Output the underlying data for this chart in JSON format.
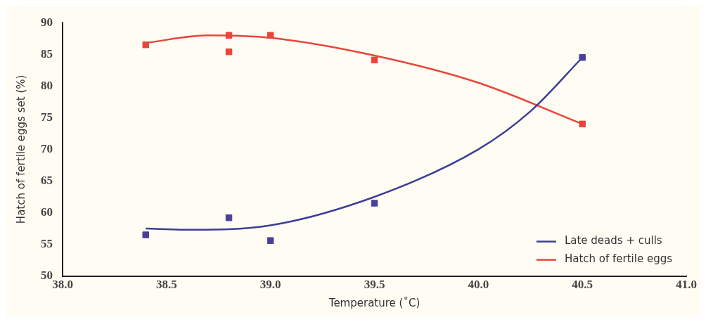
{
  "chart_data": {
    "type": "line",
    "xlabel": "Temperature (˚C)",
    "ylabel": "Hatch of fertile eggs set (%)",
    "xlim": [
      38.0,
      41.0
    ],
    "xticks": [
      {
        "value": 38.0,
        "label": "38.0"
      },
      {
        "value": 38.5,
        "label": "38.5"
      },
      {
        "value": 39.0,
        "label": "39.0"
      },
      {
        "value": 39.5,
        "label": "39.5"
      },
      {
        "value": 40.0,
        "label": "40.0"
      },
      {
        "value": 40.5,
        "label": "40.5"
      },
      {
        "value": 41.0,
        "label": "41.0"
      }
    ],
    "ylim": [
      50,
      90
    ],
    "yticks": [
      50,
      55,
      60,
      65,
      70,
      75,
      80,
      85,
      90
    ],
    "grid": false,
    "legend": "bottom right",
    "series": [
      {
        "type": "scatter",
        "color": "#e8453c",
        "x": [
          38.4,
          38.8,
          38.8,
          39.0,
          39.5,
          40.5
        ],
        "values": [
          86.5,
          88.0,
          85.4,
          88.0,
          84.1,
          74.0
        ]
      },
      {
        "type": "scatter",
        "color": "#4a3f9a",
        "x": [
          38.4,
          38.8,
          39.0,
          39.5,
          40.5
        ],
        "values": [
          56.5,
          59.2,
          55.6,
          61.5,
          84.5
        ]
      },
      {
        "name": "Late deads + culls",
        "color": "#3d3d99",
        "x": [
          38.4,
          38.6,
          39.0,
          39.5,
          40.0,
          40.25,
          40.5
        ],
        "values": [
          57.5,
          57.3,
          58.0,
          62.5,
          70.0,
          76.0,
          84.5
        ]
      },
      {
        "name": "Hatch of fertile eggs",
        "color": "#e8453c",
        "x": [
          38.4,
          38.7,
          39.0,
          39.5,
          40.0,
          40.5
        ],
        "values": [
          86.8,
          88.0,
          87.6,
          84.8,
          80.5,
          74.0
        ]
      }
    ]
  }
}
